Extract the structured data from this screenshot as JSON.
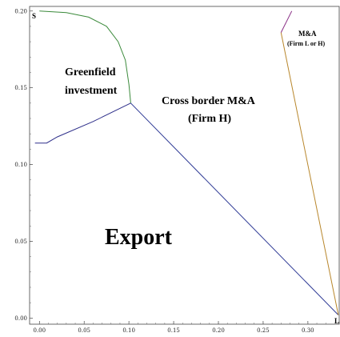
{
  "chart_data": {
    "type": "line",
    "x_ticks": [
      "0.00",
      "0.05",
      "0.10",
      "0.15",
      "0.20",
      "0.25",
      "0.30"
    ],
    "y_ticks": [
      "0.00",
      "0.05",
      "0.10",
      "0.15",
      "0.20"
    ],
    "xlim": [
      -0.011,
      0.335
    ],
    "ylim": [
      -0.004,
      0.203
    ],
    "curves": [
      {
        "name": "greenfield-boundary",
        "color": "#3b8a3b",
        "points": [
          [
            0.0,
            0.2
          ],
          [
            0.03,
            0.199
          ],
          [
            0.055,
            0.196
          ],
          [
            0.075,
            0.19
          ],
          [
            0.088,
            0.18
          ],
          [
            0.096,
            0.168
          ],
          [
            0.1,
            0.152
          ],
          [
            0.102,
            0.14
          ]
        ]
      },
      {
        "name": "export-greenfield-boundary",
        "color": "#2e2f8a",
        "points": [
          [
            -0.005,
            0.114
          ],
          [
            0.008,
            0.114
          ],
          [
            0.02,
            0.118
          ],
          [
            0.06,
            0.128
          ],
          [
            0.102,
            0.14
          ]
        ]
      },
      {
        "name": "export-ma-boundary",
        "color": "#2e3a95",
        "points": [
          [
            0.102,
            0.14
          ],
          [
            0.334,
            0.002
          ]
        ]
      },
      {
        "name": "ma-firm-h-boundary",
        "color": "#b8862b",
        "points": [
          [
            0.334,
            0.002
          ],
          [
            0.27,
            0.186
          ]
        ]
      },
      {
        "name": "ma-firm-l-boundary",
        "color": "#8a2f86",
        "points": [
          [
            0.27,
            0.186
          ],
          [
            0.282,
            0.2
          ]
        ]
      }
    ],
    "labels": {
      "greenfield_line1": "Greenfield",
      "greenfield_line2": "investment",
      "ma_h_line1": "Cross border M&A",
      "ma_h_line2": "(Firm H)",
      "export": "Export",
      "ma_lh_line1": "M&A",
      "ma_lh_line2": "(Firm L or H)",
      "corner_s": "S",
      "corner_l": "L"
    }
  }
}
